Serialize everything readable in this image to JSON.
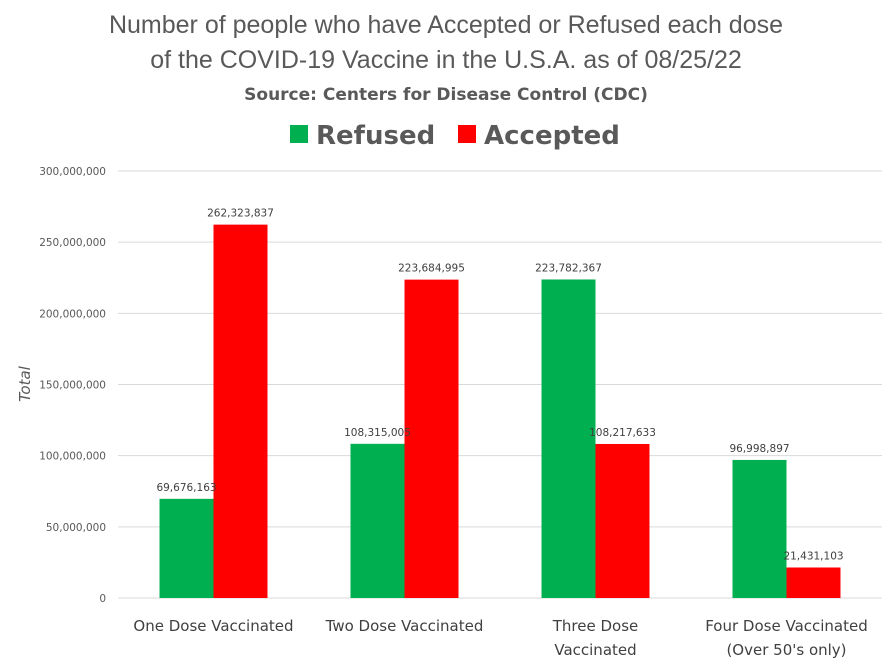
{
  "chart_data": {
    "type": "bar",
    "title_lines": [
      "Number of people who have Accepted or Refused each dose",
      "of the COVID-19 Vaccine in the U.S.A. as of 08/25/22"
    ],
    "subtitle": "Source: Centers for Disease Control (CDC)",
    "xlabel": "",
    "ylabel": "Total",
    "ylim": [
      0,
      300000000
    ],
    "yticks": [
      0,
      50000000,
      100000000,
      150000000,
      200000000,
      250000000,
      300000000
    ],
    "ytick_labels": [
      "0",
      "50,000,000",
      "100,000,000",
      "150,000,000",
      "200,000,000",
      "250,000,000",
      "300,000,000"
    ],
    "grid": true,
    "legend_position": "top",
    "categories": [
      [
        "One Dose Vaccinated"
      ],
      [
        "Two Dose Vaccinated"
      ],
      [
        "Three Dose",
        "Vaccinated"
      ],
      [
        "Four Dose Vaccinated",
        "(Over 50's only)"
      ]
    ],
    "series": [
      {
        "name": "Refused",
        "color": "#00b050",
        "values": [
          69676163,
          108315005,
          223782367,
          96998897
        ],
        "labels": [
          "69,676,163",
          "108,315,005",
          "223,782,367",
          "96,998,897"
        ]
      },
      {
        "name": "Accepted",
        "color": "#ff0000",
        "values": [
          262323837,
          223684995,
          108217633,
          21431103
        ],
        "labels": [
          "262,323,837",
          "223,684,995",
          "108,217,633",
          "21,431,103"
        ]
      }
    ]
  }
}
